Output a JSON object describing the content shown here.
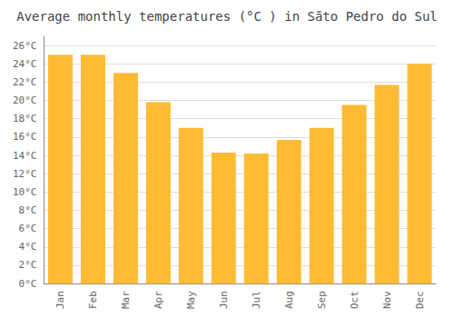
{
  "chart_data": {
    "type": "bar",
    "title": "Average monthly temperatures (°C ) in Sãto Pedro do Sul",
    "categories": [
      "Jan",
      "Feb",
      "Mar",
      "Apr",
      "May",
      "Jun",
      "Jul",
      "Aug",
      "Sep",
      "Oct",
      "Nov",
      "Dec"
    ],
    "values": [
      25.0,
      25.0,
      23.0,
      19.8,
      17.0,
      14.3,
      14.2,
      15.7,
      17.0,
      19.5,
      21.7,
      24.0
    ],
    "color": "#FFBB33",
    "ylim": [
      0,
      27
    ],
    "yticks": [
      {
        "value": 0,
        "label": "0°C"
      },
      {
        "value": 2,
        "label": "2°C"
      },
      {
        "value": 4,
        "label": "4°C"
      },
      {
        "value": 6,
        "label": "6°C"
      },
      {
        "value": 8,
        "label": "8°C"
      },
      {
        "value": 10,
        "label": "10°C"
      },
      {
        "value": 12,
        "label": "12°C"
      },
      {
        "value": 14,
        "label": "14°C"
      },
      {
        "value": 16,
        "label": "16°C"
      },
      {
        "value": 18,
        "label": "18°C"
      },
      {
        "value": 20,
        "label": "20°C"
      },
      {
        "value": 22,
        "label": "22°C"
      },
      {
        "value": 24,
        "label": "24°C"
      },
      {
        "value": 26,
        "label": "26°C"
      }
    ],
    "grid": true
  }
}
